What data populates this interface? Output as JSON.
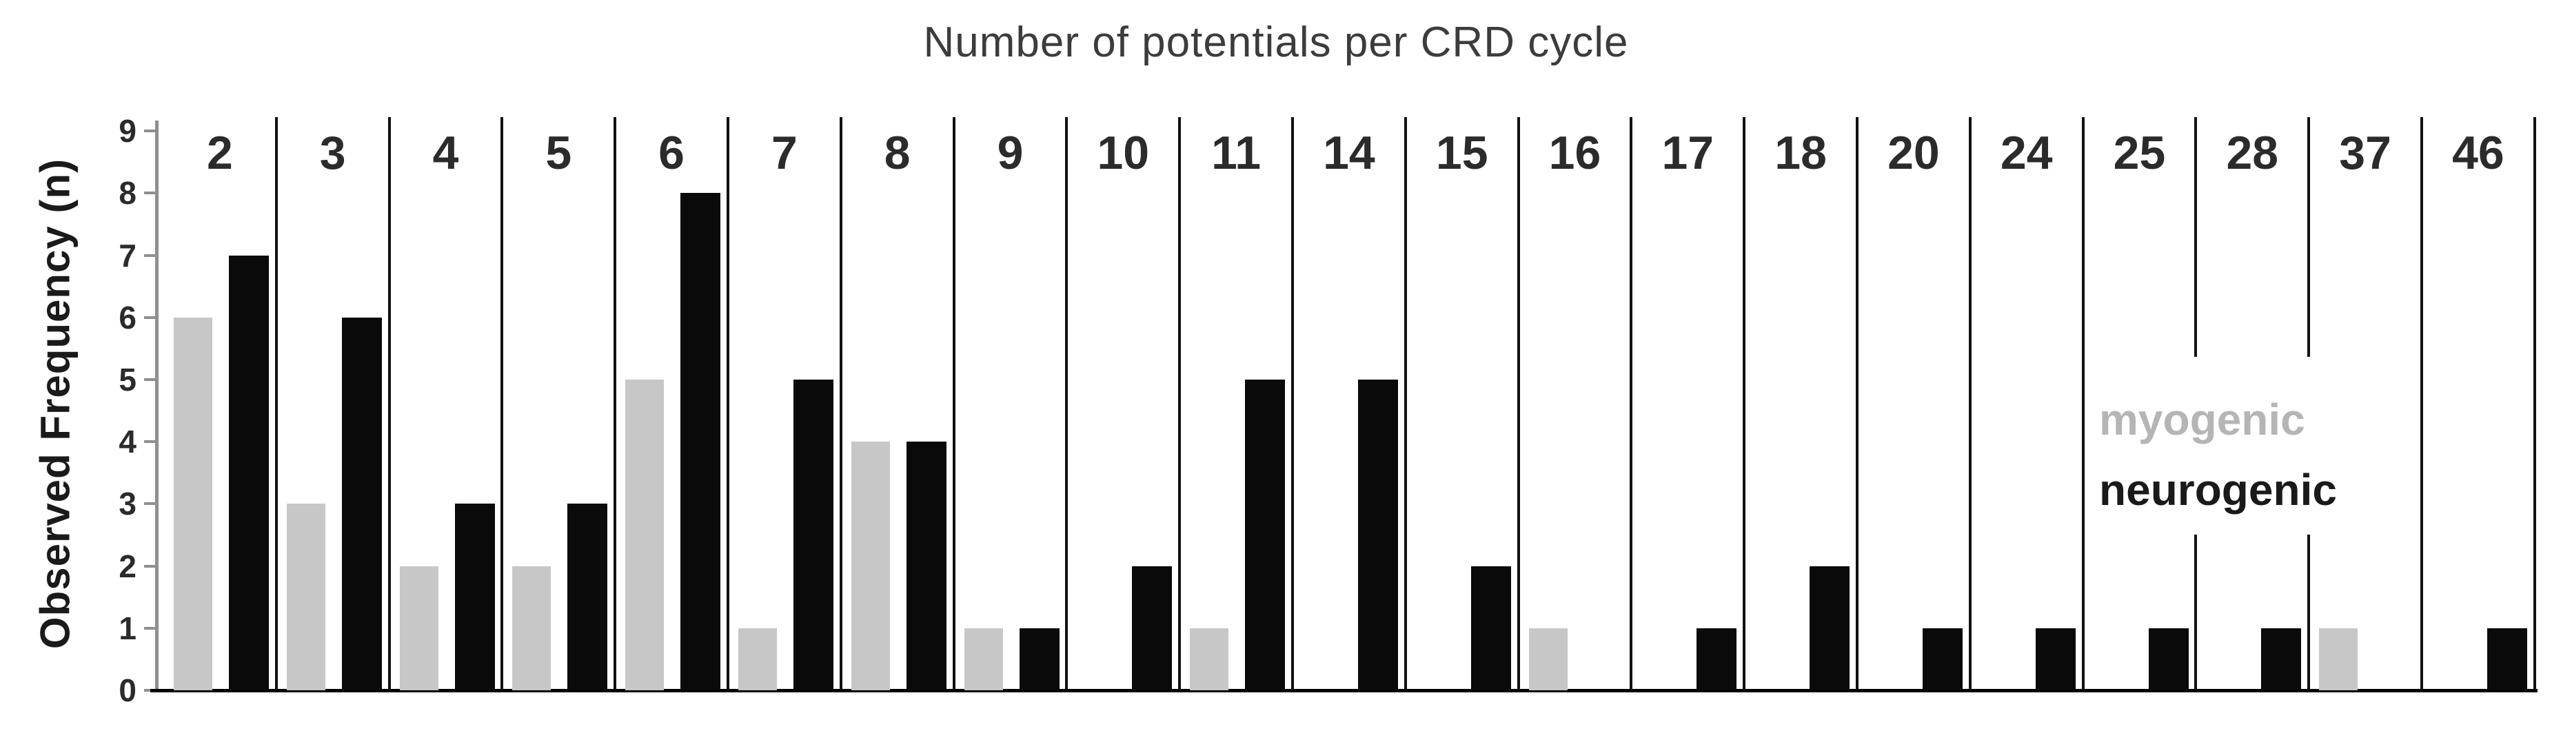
{
  "title": "Number of potentials per CRD cycle",
  "y_axis": {
    "label": "Observed Frequency (n)",
    "tick_labels": [
      "0",
      "1",
      "2",
      "3",
      "4",
      "5",
      "6",
      "7",
      "8",
      "9"
    ],
    "min": 0,
    "max": 9
  },
  "legend": {
    "items": [
      {
        "label": "myogenic",
        "text_color": "#b5b5b5"
      },
      {
        "label": "neurogenic",
        "text_color": "#1a1a1a"
      }
    ],
    "position": "inside-right"
  },
  "colors": {
    "myogenic_bar": "#c7c7c7",
    "neurogenic_bar": "#0a0a0a",
    "title_text": "#3c3c3c",
    "category_label_text": "#2b2b2b",
    "tick_label_text": "#2b2b2b",
    "y_axis_title_text": "#1a1a1a",
    "y_axis_line": "#8f8f8f",
    "tick_mark": "#8f8f8f",
    "column_separator": "#111111",
    "baseline": "#000000",
    "background": "#ffffff"
  },
  "chart_data": {
    "type": "bar",
    "title": "Number of potentials per CRD cycle",
    "xlabel": "",
    "ylabel": "Observed Frequency (n)",
    "ylim": [
      0,
      9
    ],
    "y_ticks": [
      0,
      1,
      2,
      3,
      4,
      5,
      6,
      7,
      8,
      9
    ],
    "grid": false,
    "legend_position": "inside right",
    "categories": [
      "2",
      "3",
      "4",
      "5",
      "6",
      "7",
      "8",
      "9",
      "10",
      "11",
      "14",
      "15",
      "16",
      "17",
      "18",
      "20",
      "24",
      "25",
      "28",
      "37",
      "46"
    ],
    "series": [
      {
        "name": "myogenic",
        "values": [
          6,
          3,
          2,
          2,
          5,
          1,
          4,
          1,
          0,
          1,
          0,
          0,
          1,
          0,
          0,
          0,
          0,
          0,
          0,
          1,
          0
        ]
      },
      {
        "name": "neurogenic",
        "values": [
          7,
          6,
          3,
          3,
          8,
          5,
          4,
          1,
          2,
          5,
          5,
          2,
          0,
          1,
          2,
          1,
          1,
          1,
          1,
          0,
          1
        ]
      }
    ]
  }
}
